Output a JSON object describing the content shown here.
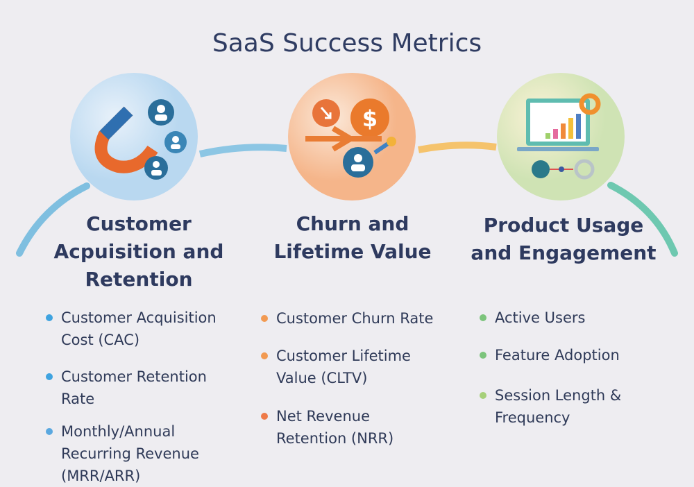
{
  "title": "SaaS Success Metrics",
  "colors": {
    "blue": "#3fa3e0",
    "orange": "#f29a52",
    "green": "#7cc47c",
    "text": "#2e3a5f",
    "background": "#eeedf1"
  },
  "sections": [
    {
      "heading": "Customer Acpuisition and Retention",
      "icon": "magnet-users-icon",
      "items": [
        "Customer Acquisition Cost (CAC)",
        "Customer Retention Rate",
        "Monthly/Annual Recurring Revenue (MRR/ARR)"
      ]
    },
    {
      "heading": "Churn and Lifetime Value",
      "icon": "churn-dollar-icon",
      "items": [
        "Customer Churn Rate",
        "Customer Lifetime Value (CLTV)",
        "Net Revenue Retention (NRR)"
      ]
    },
    {
      "heading": "Product Usage and Engagement",
      "icon": "laptop-chart-icon",
      "items": [
        "Active Users",
        "Feature Adoption",
        "Session Length & Frequency"
      ]
    }
  ]
}
